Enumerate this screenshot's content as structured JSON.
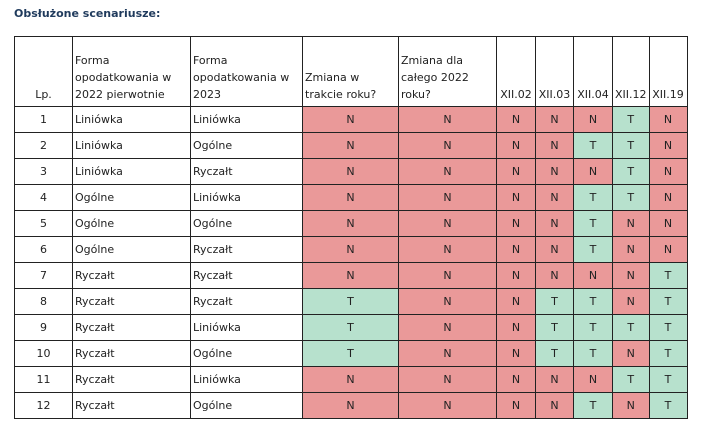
{
  "title": "Obsłużone scenariusze:",
  "colors": {
    "N": "#ea9999",
    "T": "#b7e1cd"
  },
  "headers": [
    "Lp.",
    "Forma\nopodatkowania w\n2022 pierwotnie",
    "Forma\nopodatkowania w\n2023",
    "Zmiana w\ntrakcie roku?",
    "Zmiana dla\ncałego 2022\nroku?",
    "XII.02",
    "XII.03",
    "XII.04",
    "XII.12",
    "XII.19"
  ],
  "rows": [
    [
      "1",
      "Liniówka",
      "Liniówka",
      "N",
      "N",
      "N",
      "N",
      "N",
      "T",
      "N"
    ],
    [
      "2",
      "Liniówka",
      "Ogólne",
      "N",
      "N",
      "N",
      "N",
      "T",
      "T",
      "N"
    ],
    [
      "3",
      "Liniówka",
      "Ryczałt",
      "N",
      "N",
      "N",
      "N",
      "N",
      "T",
      "N"
    ],
    [
      "4",
      "Ogólne",
      "Liniówka",
      "N",
      "N",
      "N",
      "N",
      "T",
      "T",
      "N"
    ],
    [
      "5",
      "Ogólne",
      "Ogólne",
      "N",
      "N",
      "N",
      "N",
      "T",
      "N",
      "N"
    ],
    [
      "6",
      "Ogólne",
      "Ryczałt",
      "N",
      "N",
      "N",
      "N",
      "T",
      "N",
      "N"
    ],
    [
      "7",
      "Ryczałt",
      "Ryczałt",
      "N",
      "N",
      "N",
      "N",
      "N",
      "N",
      "T"
    ],
    [
      "8",
      "Ryczałt",
      "Ryczałt",
      "T",
      "N",
      "N",
      "T",
      "T",
      "N",
      "T"
    ],
    [
      "9",
      "Ryczałt",
      "Liniówka",
      "T",
      "N",
      "N",
      "T",
      "T",
      "T",
      "T"
    ],
    [
      "10",
      "Ryczałt",
      "Ogólne",
      "T",
      "N",
      "N",
      "T",
      "T",
      "N",
      "T"
    ],
    [
      "11",
      "Ryczałt",
      "Liniówka",
      "N",
      "N",
      "N",
      "N",
      "N",
      "T",
      "T"
    ],
    [
      "12",
      "Ryczałt",
      "Ogólne",
      "N",
      "N",
      "N",
      "N",
      "T",
      "N",
      "T"
    ]
  ]
}
